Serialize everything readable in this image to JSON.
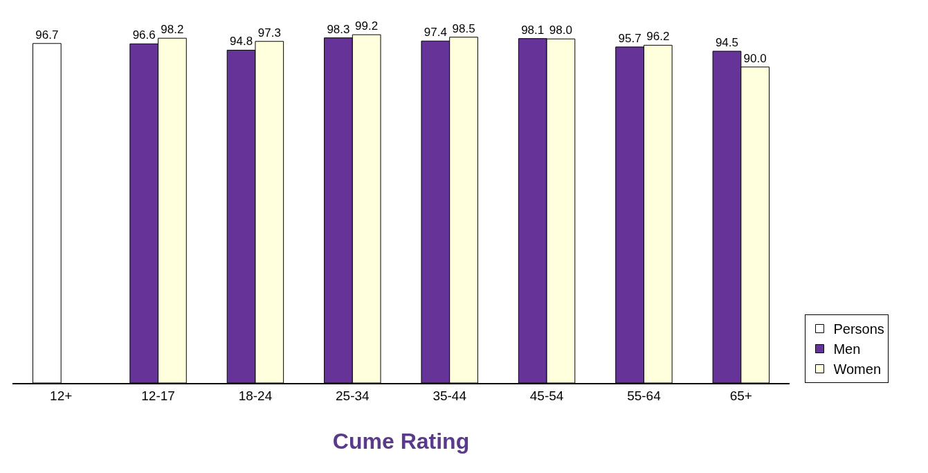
{
  "chart_data": {
    "type": "bar",
    "xlabel": "Cume Rating",
    "categories": [
      "12+",
      "12-17",
      "18-24",
      "25-34",
      "35-44",
      "45-54",
      "55-64",
      "65+"
    ],
    "series": [
      {
        "name": "Persons",
        "color": "#ffffff",
        "values": [
          96.7,
          null,
          null,
          null,
          null,
          null,
          null,
          null
        ],
        "value_labels": [
          "96.7",
          null,
          null,
          null,
          null,
          null,
          null,
          null
        ]
      },
      {
        "name": "Men",
        "color": "#663399",
        "values": [
          null,
          96.6,
          94.8,
          98.3,
          97.4,
          98.1,
          95.7,
          94.5
        ],
        "value_labels": [
          null,
          "96.6",
          "94.8",
          "98.3",
          "97.4",
          "98.1",
          "95.7",
          "94.5"
        ]
      },
      {
        "name": "Women",
        "color": "#ffffdd",
        "values": [
          null,
          98.2,
          97.3,
          99.2,
          98.5,
          98.0,
          96.2,
          90.0
        ],
        "value_labels": [
          null,
          "98.2",
          "97.3",
          "99.2",
          "98.5",
          "98.0",
          "96.2",
          "90.0"
        ]
      }
    ],
    "legend": "right",
    "tick_labels": "x",
    "grid": false
  }
}
